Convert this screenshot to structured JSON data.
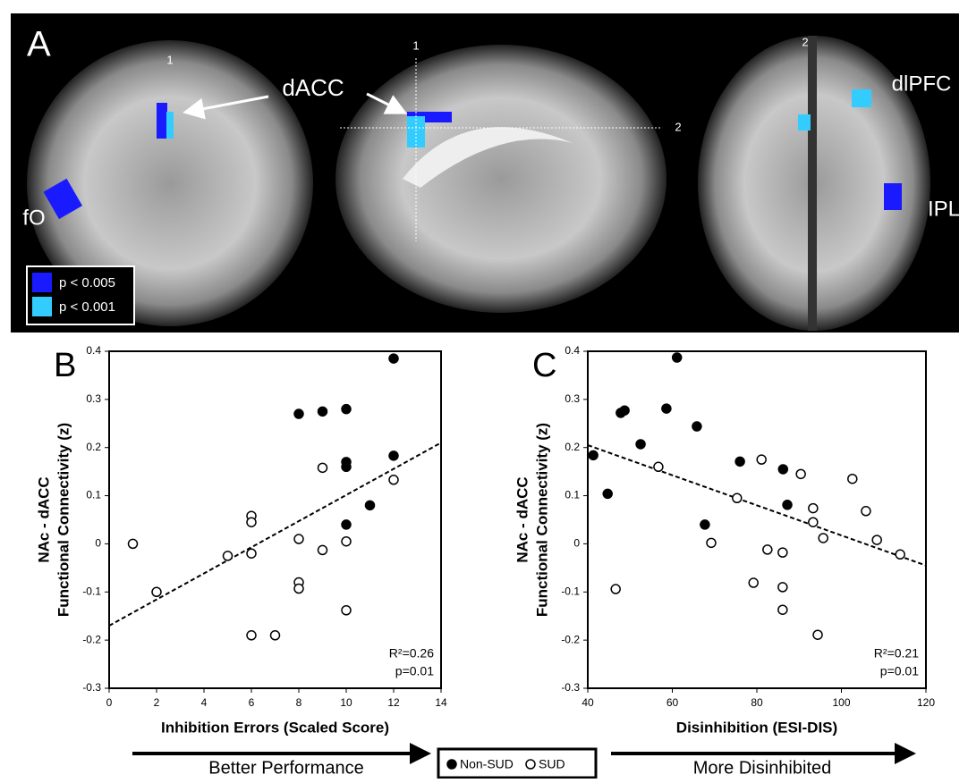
{
  "panel_a": {
    "letter": "A",
    "labels": {
      "dacc": "dACC",
      "dlpfc": "dlPFC",
      "ipl": "IPL",
      "fo": "fO"
    },
    "slice_marks": [
      "1",
      "1",
      "2",
      "2"
    ],
    "legend": [
      {
        "name": "p < 0.005",
        "color": "#1a1aff"
      },
      {
        "name": "p < 0.001",
        "color": "#33ccff"
      }
    ]
  },
  "chart_data": [
    {
      "type": "scatter",
      "panel": "B",
      "xlabel": "Inhibition Errors (Scaled Score)",
      "ylabel": [
        "NAc - dACC",
        "Functional Connectivity (z)"
      ],
      "xlim": [
        0,
        14
      ],
      "xticks": [
        0,
        2,
        4,
        6,
        8,
        10,
        12,
        14
      ],
      "ylim": [
        -0.3,
        0.4
      ],
      "yticks": [
        0.4,
        0.3,
        0.2,
        0.1,
        0,
        -0.1,
        -0.2,
        -0.3
      ],
      "series": [
        {
          "name": "Non-SUD",
          "color": "#000000",
          "filled": true,
          "x": [
            8,
            9,
            10,
            12,
            12,
            10,
            10,
            11,
            10
          ],
          "values": [
            0.27,
            0.275,
            0.28,
            0.385,
            0.183,
            0.17,
            0.16,
            0.08,
            0.04
          ]
        },
        {
          "name": "SUD",
          "color": "#000000",
          "filled": false,
          "x": [
            1,
            2,
            5,
            6,
            6,
            6,
            6,
            7,
            8,
            8,
            8,
            9,
            9,
            10,
            10,
            12
          ],
          "values": [
            0,
            -0.1,
            -0.025,
            0.058,
            0.045,
            -0.02,
            -0.19,
            -0.19,
            0.01,
            -0.08,
            -0.093,
            0.158,
            -0.013,
            0.005,
            -0.138,
            0.133
          ]
        }
      ],
      "trendline": {
        "x": [
          0,
          14
        ],
        "y": [
          -0.17,
          0.21
        ]
      },
      "annotations": [
        "R²=0.26",
        "p=0.01"
      ]
    },
    {
      "type": "scatter",
      "panel": "C",
      "xlabel": "Disinhibition (ESI-DIS)",
      "ylabel": [
        "NAc - dACC",
        "Functional Connectivity (z)"
      ],
      "xlim": [
        40,
        120
      ],
      "xticks": [
        40,
        60,
        80,
        100,
        120
      ],
      "ylim": [
        -0.3,
        0.4
      ],
      "yticks": [
        0.4,
        0.3,
        0.2,
        0.1,
        0,
        -0.1,
        -0.2,
        -0.3
      ],
      "series": [
        {
          "name": "Non-SUD",
          "color": "#000000",
          "filled": true,
          "x": [
            41.3,
            44.7,
            47.8,
            48.7,
            58.6,
            61.1,
            65.8,
            67.7,
            52.5,
            76,
            86.2,
            87.2
          ],
          "values": [
            0.184,
            0.104,
            0.272,
            0.277,
            0.281,
            0.387,
            0.244,
            0.04,
            0.207,
            0.171,
            0.155,
            0.081
          ]
        },
        {
          "name": "SUD",
          "color": "#000000",
          "filled": false,
          "x": [
            56.7,
            75.3,
            69.2,
            46.6,
            81.1,
            90.4,
            93.3,
            93.3,
            95.7,
            82.5,
            79.2,
            86.1,
            86.1,
            86.1,
            94.4,
            102.6,
            105.8,
            108.4,
            113.9
          ],
          "values": [
            0.16,
            0.095,
            0.002,
            -0.094,
            0.175,
            0.145,
            0.074,
            0.045,
            0.012,
            -0.012,
            -0.081,
            -0.018,
            -0.09,
            -0.137,
            -0.189,
            0.135,
            0.068,
            0.008,
            -0.022
          ]
        }
      ],
      "trendline": {
        "x": [
          40,
          120
        ],
        "y": [
          0.205,
          -0.045
        ]
      },
      "annotations": [
        "R²=0.21",
        "p=0.01"
      ]
    }
  ],
  "footer": {
    "left_arrow": "Better Performance",
    "right_arrow": "More Disinhibited"
  }
}
